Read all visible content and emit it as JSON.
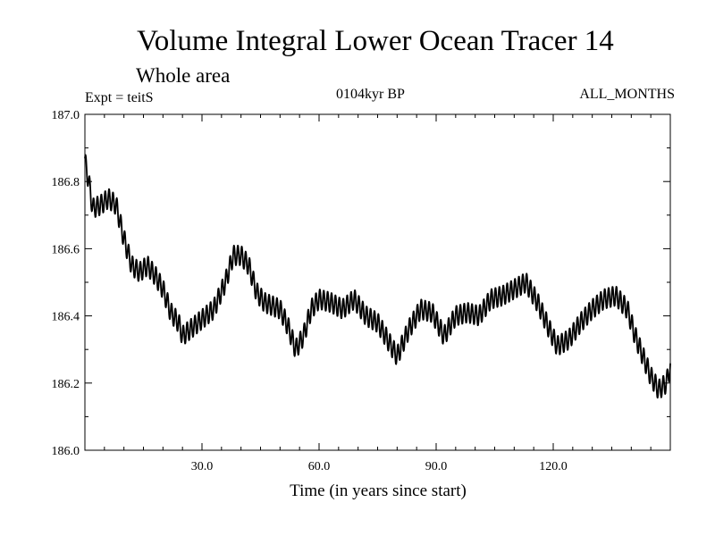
{
  "chart_data": {
    "type": "line",
    "title": "Volume Integral Lower Ocean Tracer 14",
    "subtitle": "Whole area",
    "expt_label": "Expt = teitS",
    "period_label": "0104kyr BP",
    "months_label": "ALL_MONTHS",
    "xlabel": "Time (in years since start)",
    "ylabel": "",
    "xlim": [
      0,
      150
    ],
    "ylim": [
      186.0,
      187.0
    ],
    "xticks": [
      30,
      60,
      90,
      120
    ],
    "xtick_labels": [
      "30.0",
      "60.0",
      "90.0",
      "120.0"
    ],
    "yticks": [
      186.0,
      186.2,
      186.4,
      186.6,
      186.8,
      187.0
    ],
    "ytick_labels": [
      "186.0",
      "186.2",
      "186.4",
      "186.6",
      "186.8",
      "187.0"
    ],
    "series": [
      {
        "name": "Volume Integral Lower Ocean Tracer 14",
        "annual_cycle_amplitude": 0.03,
        "color": "#000000",
        "x": [
          0,
          1,
          2,
          4,
          6,
          8,
          10,
          12,
          14,
          16,
          18,
          20,
          22,
          24,
          25,
          27,
          30,
          33,
          36,
          38,
          40,
          42,
          44,
          46,
          48,
          50,
          52,
          54,
          56,
          58,
          60,
          63,
          66,
          69,
          72,
          75,
          78,
          80,
          83,
          86,
          89,
          92,
          95,
          98,
          101,
          104,
          107,
          110,
          113,
          116,
          119,
          121,
          124,
          127,
          130,
          133,
          136,
          139,
          141,
          143,
          145,
          147,
          149,
          150
        ],
        "y": [
          186.86,
          186.8,
          186.72,
          186.73,
          186.75,
          186.73,
          186.63,
          186.55,
          186.53,
          186.55,
          186.52,
          186.48,
          186.41,
          186.38,
          186.34,
          186.36,
          186.39,
          186.42,
          186.5,
          186.58,
          186.58,
          186.55,
          186.47,
          186.44,
          186.43,
          186.42,
          186.37,
          186.3,
          186.34,
          186.42,
          186.45,
          186.44,
          186.42,
          186.45,
          186.4,
          186.38,
          186.32,
          186.28,
          186.36,
          186.42,
          186.41,
          186.34,
          186.4,
          186.41,
          186.4,
          186.45,
          186.46,
          186.48,
          186.5,
          186.44,
          186.36,
          186.31,
          186.33,
          186.38,
          186.42,
          186.45,
          186.46,
          186.42,
          186.34,
          186.28,
          186.22,
          186.18,
          186.2,
          186.25
        ]
      }
    ]
  }
}
